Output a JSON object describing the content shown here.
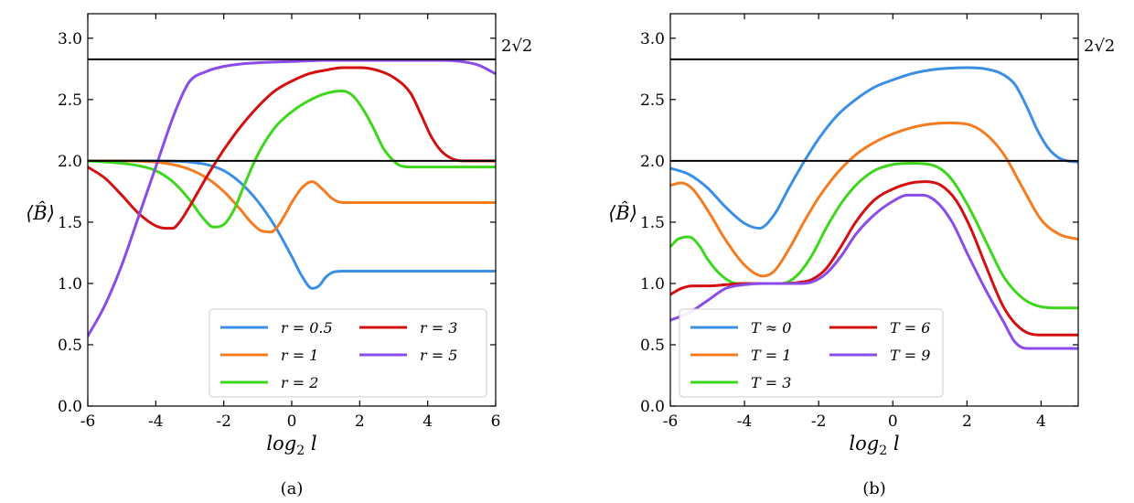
{
  "chart_data": [
    {
      "type": "line",
      "panel": "(a)",
      "caption": "(a)",
      "xlabel": "log₂ l",
      "ylabel": "⟨B̂⟩",
      "xlim": [
        -6,
        6
      ],
      "ylim": [
        0,
        3.2
      ],
      "xticks": [
        -6,
        -4,
        -2,
        0,
        2,
        4,
        6
      ],
      "xtick_labels": [
        "-6",
        "-4",
        "-2",
        "0",
        "2",
        "4",
        "6"
      ],
      "yticks": [
        0,
        0.5,
        1,
        1.5,
        2,
        2.5,
        3
      ],
      "ytick_labels": [
        "0.0",
        "0.5",
        "1.0",
        "1.5",
        "2.0",
        "2.5",
        "3.0"
      ],
      "reference_lines": [
        {
          "y": 2.8284,
          "label": "2√2"
        },
        {
          "y": 2.0,
          "label": ""
        }
      ],
      "legend_position": "lower-right",
      "legend_columns": 2,
      "series": [
        {
          "name": "r = 0.5",
          "color": "#3b8ee6",
          "x": [
            -6,
            -5,
            -4,
            -3,
            -2.5,
            -2,
            -1.5,
            -1,
            -0.5,
            0,
            0.3,
            0.6,
            0.8,
            1.0,
            1.2,
            1.5,
            2,
            3,
            4,
            5,
            6
          ],
          "y": [
            2.0,
            2.0,
            2.0,
            1.99,
            1.97,
            1.92,
            1.82,
            1.67,
            1.47,
            1.22,
            1.06,
            0.96,
            0.98,
            1.05,
            1.09,
            1.1,
            1.1,
            1.1,
            1.1,
            1.1,
            1.1
          ]
        },
        {
          "name": "r = 1",
          "color": "#f57b20",
          "x": [
            -6,
            -5,
            -4,
            -3.5,
            -3,
            -2.5,
            -2,
            -1.5,
            -1.2,
            -0.9,
            -0.6,
            -0.4,
            -0.2,
            0,
            0.3,
            0.6,
            0.9,
            1.2,
            1.5,
            2,
            3,
            4,
            5,
            6
          ],
          "y": [
            2.0,
            2.0,
            1.99,
            1.97,
            1.93,
            1.86,
            1.75,
            1.6,
            1.5,
            1.43,
            1.42,
            1.47,
            1.56,
            1.66,
            1.78,
            1.83,
            1.77,
            1.69,
            1.66,
            1.66,
            1.66,
            1.66,
            1.66,
            1.66
          ]
        },
        {
          "name": "r = 2",
          "color": "#3ed61c",
          "x": [
            -6,
            -5,
            -4.5,
            -4,
            -3.5,
            -3,
            -2.6,
            -2.3,
            -2.0,
            -1.7,
            -1.4,
            -1.0,
            -0.5,
            0,
            0.5,
            1.0,
            1.5,
            1.8,
            2.1,
            2.4,
            2.7,
            3.0,
            3.2,
            3.5,
            4,
            5,
            6
          ],
          "y": [
            2.0,
            1.98,
            1.96,
            1.92,
            1.83,
            1.68,
            1.53,
            1.46,
            1.48,
            1.6,
            1.8,
            2.05,
            2.27,
            2.4,
            2.49,
            2.55,
            2.57,
            2.53,
            2.42,
            2.27,
            2.1,
            2.0,
            1.96,
            1.95,
            1.95,
            1.95,
            1.95
          ]
        },
        {
          "name": "r = 3",
          "color": "#d40f0f",
          "x": [
            -6,
            -5.5,
            -5,
            -4.5,
            -4,
            -3.7,
            -3.5,
            -3.3,
            -3.0,
            -2.5,
            -2.0,
            -1.5,
            -1.0,
            -0.5,
            0,
            0.5,
            1.0,
            1.5,
            2,
            2.5,
            3.0,
            3.5,
            3.8,
            4.1,
            4.4,
            4.7,
            5,
            5.5,
            6
          ],
          "y": [
            1.95,
            1.86,
            1.72,
            1.57,
            1.47,
            1.45,
            1.45,
            1.5,
            1.63,
            1.87,
            2.09,
            2.28,
            2.44,
            2.57,
            2.65,
            2.71,
            2.74,
            2.76,
            2.76,
            2.74,
            2.68,
            2.55,
            2.38,
            2.2,
            2.08,
            2.02,
            2.0,
            2.0,
            2.0
          ]
        },
        {
          "name": "r = 5",
          "color": "#8a4be8",
          "x": [
            -6,
            -5.5,
            -5,
            -4.5,
            -4,
            -3.5,
            -3.2,
            -3.0,
            -2.5,
            -2.0,
            -1.5,
            -1.0,
            0,
            1,
            2,
            3,
            4,
            4.5,
            5,
            5.5,
            6
          ],
          "y": [
            0.57,
            0.82,
            1.15,
            1.55,
            1.95,
            2.35,
            2.55,
            2.65,
            2.73,
            2.77,
            2.79,
            2.8,
            2.81,
            2.82,
            2.82,
            2.82,
            2.82,
            2.82,
            2.81,
            2.78,
            2.71
          ]
        }
      ]
    },
    {
      "type": "line",
      "panel": "(b)",
      "caption": "(b)",
      "xlabel": "log₂ l",
      "ylabel": "⟨B̂⟩",
      "xlim": [
        -6,
        5
      ],
      "ylim": [
        0,
        3.2
      ],
      "xticks": [
        -6,
        -4,
        -2,
        0,
        2,
        4
      ],
      "xtick_labels": [
        "-6",
        "-4",
        "-2",
        "0",
        "2",
        "4"
      ],
      "yticks": [
        0,
        0.5,
        1,
        1.5,
        2,
        2.5,
        3
      ],
      "ytick_labels": [
        "0.0",
        "0.5",
        "1.0",
        "1.5",
        "2.0",
        "2.5",
        "3.0"
      ],
      "reference_lines": [
        {
          "y": 2.8284,
          "label": "2√2"
        },
        {
          "y": 2.0,
          "label": ""
        }
      ],
      "legend_position": "lower-left",
      "legend_columns": 2,
      "series": [
        {
          "name": "T ≈ 0",
          "color": "#3b8ee6",
          "x": [
            -6,
            -5.5,
            -5,
            -4.5,
            -4,
            -3.6,
            -3.2,
            -2.8,
            -2.4,
            -2,
            -1.5,
            -1,
            -0.5,
            0,
            0.5,
            1,
            1.5,
            2,
            2.5,
            3,
            3.3,
            3.6,
            3.9,
            4.2,
            4.5,
            4.7,
            5
          ],
          "y": [
            1.94,
            1.89,
            1.78,
            1.62,
            1.49,
            1.45,
            1.56,
            1.78,
            1.99,
            2.18,
            2.37,
            2.5,
            2.6,
            2.66,
            2.71,
            2.74,
            2.755,
            2.76,
            2.75,
            2.7,
            2.62,
            2.45,
            2.25,
            2.1,
            2.02,
            2.0,
            1.99
          ]
        },
        {
          "name": "T = 1",
          "color": "#f57b20",
          "x": [
            -6,
            -5.7,
            -5.4,
            -5,
            -4.5,
            -4,
            -3.5,
            -3.2,
            -2.8,
            -2.4,
            -2,
            -1.5,
            -1,
            -0.5,
            0,
            0.5,
            1,
            1.5,
            2,
            2.5,
            3,
            3.5,
            4,
            4.5,
            5
          ],
          "y": [
            1.8,
            1.82,
            1.77,
            1.6,
            1.35,
            1.15,
            1.06,
            1.1,
            1.28,
            1.5,
            1.7,
            1.9,
            2.05,
            2.15,
            2.22,
            2.27,
            2.3,
            2.31,
            2.3,
            2.22,
            2.05,
            1.78,
            1.52,
            1.4,
            1.36
          ]
        },
        {
          "name": "T = 3",
          "color": "#3ed61c",
          "x": [
            -6,
            -5.8,
            -5.5,
            -5.2,
            -5,
            -4.6,
            -4.2,
            -3.8,
            -3.4,
            -3,
            -2.6,
            -2.2,
            -1.8,
            -1.4,
            -1,
            -0.5,
            0,
            0.5,
            1,
            1.5,
            2,
            2.5,
            3,
            3.5,
            4,
            4.5,
            5
          ],
          "y": [
            1.3,
            1.36,
            1.38,
            1.3,
            1.2,
            1.06,
            1.0,
            1.0,
            1.0,
            1.0,
            1.06,
            1.22,
            1.45,
            1.65,
            1.8,
            1.92,
            1.97,
            1.98,
            1.97,
            1.88,
            1.65,
            1.35,
            1.05,
            0.88,
            0.81,
            0.8,
            0.8
          ]
        },
        {
          "name": "T = 6",
          "color": "#d40f0f",
          "x": [
            -6,
            -5.7,
            -5.4,
            -5,
            -4.5,
            -4,
            -3.5,
            -3,
            -2.5,
            -2.2,
            -1.8,
            -1.4,
            -1,
            -0.5,
            0,
            0.5,
            0.9,
            1.3,
            1.7,
            2.1,
            2.5,
            3,
            3.5,
            4,
            4.5,
            5
          ],
          "y": [
            0.91,
            0.96,
            0.98,
            0.98,
            0.99,
            1.0,
            1.0,
            1.0,
            1.01,
            1.03,
            1.12,
            1.3,
            1.5,
            1.68,
            1.77,
            1.82,
            1.83,
            1.8,
            1.68,
            1.45,
            1.15,
            0.8,
            0.62,
            0.58,
            0.58,
            0.58
          ]
        },
        {
          "name": "T = 9",
          "color": "#8a4be8",
          "x": [
            -6,
            -5.5,
            -5,
            -4.5,
            -4,
            -3.5,
            -3,
            -2.5,
            -2.2,
            -1.8,
            -1.4,
            -1,
            -0.5,
            0,
            0.4,
            0.8,
            1.2,
            1.6,
            2,
            2.5,
            3,
            3.3,
            3.6,
            4,
            4.5,
            5
          ],
          "y": [
            0.7,
            0.76,
            0.86,
            0.96,
            0.99,
            1.0,
            1.0,
            1.0,
            1.01,
            1.08,
            1.22,
            1.4,
            1.56,
            1.67,
            1.72,
            1.72,
            1.66,
            1.5,
            1.25,
            0.95,
            0.68,
            0.52,
            0.47,
            0.47,
            0.47,
            0.47
          ]
        }
      ]
    }
  ]
}
